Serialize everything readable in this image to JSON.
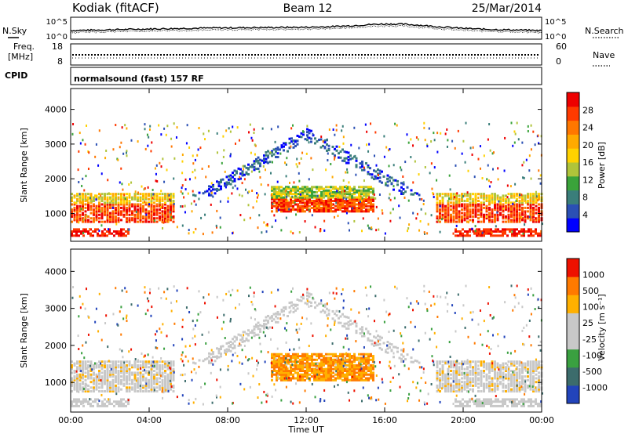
{
  "header": {
    "station": "Kodiak (fitACF)",
    "beam": "Beam 12",
    "date": "25/Mar/2014"
  },
  "noise_panel": {
    "left_label": "N.Sky",
    "right_label": "N.Search",
    "ytick_top": "10^5",
    "ytick_bottom": "10^0"
  },
  "freq_panel": {
    "left_label_1": "Freq.",
    "left_label_2": "[MHz]",
    "left_ticks": [
      "18",
      "8"
    ],
    "right_label": "Nave",
    "right_ticks": [
      "60",
      "0"
    ]
  },
  "cpid": {
    "label": "CPID",
    "value": "normalsound (fast) 157 RF"
  },
  "chart_data": [
    {
      "type": "heatmap",
      "name": "power",
      "ylabel": "Slant Range [km]",
      "yticks": [
        "1000",
        "2000",
        "3000",
        "4000"
      ],
      "ylim": [
        200,
        4600
      ],
      "colorbar_label": "Power [dB]",
      "colorbar_ticks": [
        "4",
        "8",
        "12",
        "16",
        "20",
        "24",
        "28"
      ],
      "colorbar_colors": [
        "#0000ff",
        "#2b50b4",
        "#3a7e7a",
        "#3aa33a",
        "#b0c43a",
        "#ffd200",
        "#ffaa00",
        "#ff7700",
        "#ff3a00",
        "#ee0000"
      ]
    },
    {
      "type": "heatmap",
      "name": "velocity",
      "ylabel": "Slant Range [km]",
      "yticks": [
        "1000",
        "2000",
        "3000",
        "4000"
      ],
      "ylim": [
        200,
        4600
      ],
      "colorbar_label": "Velocity [m s⁻¹]",
      "colorbar_ticks": [
        "1000",
        "500",
        "100",
        "25",
        "-25",
        "-100",
        "-500",
        "-1000"
      ],
      "colorbar_colors": [
        "#2244bb",
        "#3c6c6c",
        "#3aa040",
        "#c8c8c8",
        "#c8c8c8",
        "#ffb000",
        "#ff7a00",
        "#ee1100"
      ]
    }
  ],
  "time_axis": {
    "ticks": [
      "00:00",
      "04:00",
      "08:00",
      "12:00",
      "16:00",
      "20:00",
      "00:00"
    ],
    "label": "Time UT"
  }
}
